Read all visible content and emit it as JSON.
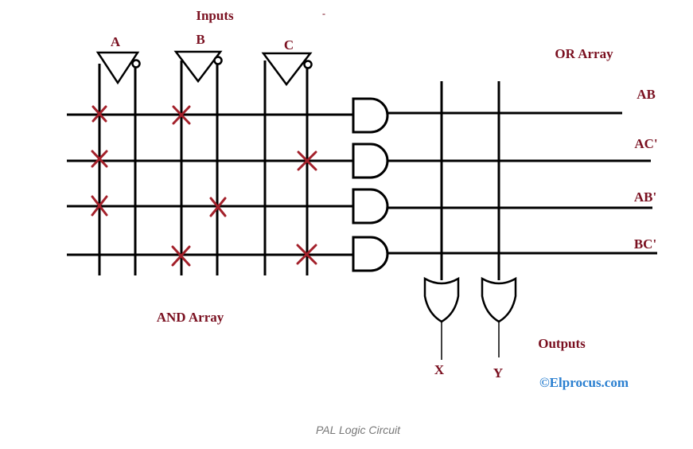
{
  "labels": {
    "inputs": "Inputs",
    "or_array": "OR Array",
    "and_array": "AND Array",
    "outputs": "Outputs",
    "watermark": "©Elprocus.com",
    "caption": "PAL Logic Circuit",
    "tick": "-"
  },
  "inputs": [
    "A",
    "B",
    "C"
  ],
  "product_terms": [
    "AB",
    "AC'",
    "AB'",
    "BC'"
  ],
  "outputs": [
    "X",
    "Y"
  ],
  "colors": {
    "label": "#7a1020",
    "cross": "#a3202a",
    "watermark": "#2a7fd0",
    "caption": "#777777"
  }
}
